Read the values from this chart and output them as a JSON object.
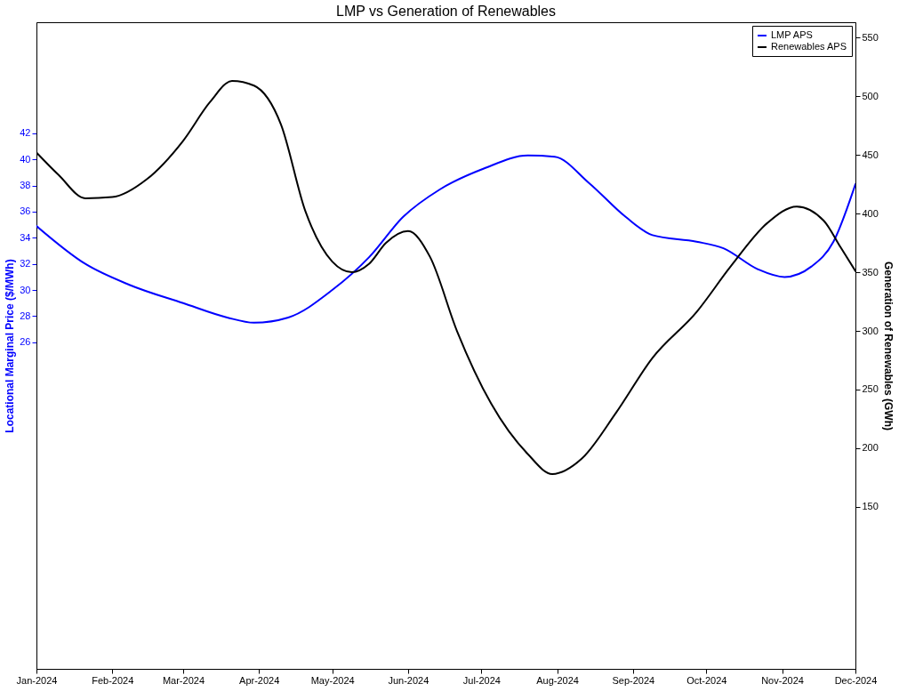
{
  "chart_data": {
    "type": "line",
    "title": "LMP vs Generation of Renewables",
    "ylabel": "Locational Marginal Price ($/MWh)",
    "y2label": "Generation of Renewables (GWh)",
    "legend": "top right",
    "grid": false,
    "line_style": "solid",
    "xlim": [
      "2024-01-01",
      "2024-12-01"
    ],
    "xticks": [
      {
        "value": "2024-01-01",
        "label": "Jan-2024"
      },
      {
        "value": "2024-02-01",
        "label": "Feb-2024"
      },
      {
        "value": "2024-03-01",
        "label": "Mar-2024"
      },
      {
        "value": "2024-04-01",
        "label": "Apr-2024"
      },
      {
        "value": "2024-05-01",
        "label": "May-2024"
      },
      {
        "value": "2024-06-01",
        "label": "Jun-2024"
      },
      {
        "value": "2024-07-01",
        "label": "Jul-2024"
      },
      {
        "value": "2024-08-01",
        "label": "Aug-2024"
      },
      {
        "value": "2024-09-01",
        "label": "Sep-2024"
      },
      {
        "value": "2024-10-01",
        "label": "Oct-2024"
      },
      {
        "value": "2024-11-01",
        "label": "Nov-2024"
      },
      {
        "value": "2024-12-01",
        "label": "Dec-2024"
      }
    ],
    "ylim": [
      1,
      50.5
    ],
    "yticks": [
      26,
      28,
      30,
      32,
      34,
      36,
      38,
      40,
      42
    ],
    "y2lim": [
      12,
      563
    ],
    "y2ticks": [
      150,
      200,
      250,
      300,
      350,
      400,
      450,
      500,
      550
    ],
    "series": [
      {
        "name": "LMP APS",
        "color": "#0000ff",
        "x": [
          "2024-01-01",
          "2024-01-21",
          "2024-02-08",
          "2024-03-01",
          "2024-03-19",
          "2024-03-30",
          "2024-04-13",
          "2024-05-01",
          "2024-05-16",
          "2024-05-30",
          "2024-06-14",
          "2024-07-02",
          "2024-07-20",
          "2024-07-31",
          "2024-08-14",
          "2024-08-29",
          "2024-09-09",
          "2024-09-27",
          "2024-10-08",
          "2024-10-22",
          "2024-11-02",
          "2024-11-13",
          "2024-11-22",
          "2024-12-01"
        ],
        "values": [
          34.9,
          32.0,
          30.4,
          29.0,
          27.9,
          27.5,
          27.9,
          30.0,
          32.5,
          35.6,
          37.7,
          39.3,
          40.3,
          40.2,
          38.2,
          35.6,
          34.2,
          33.7,
          33.2,
          31.6,
          31.0,
          31.8,
          33.7,
          38.1
        ]
      },
      {
        "name": "Renewables APS",
        "color": "#000000",
        "axis": "y2",
        "x": [
          "2024-01-01",
          "2024-01-10",
          "2024-01-21",
          "2024-02-01",
          "2024-02-15",
          "2024-03-01",
          "2024-03-12",
          "2024-03-21",
          "2024-03-30",
          "2024-04-10",
          "2024-04-20",
          "2024-05-01",
          "2024-05-09",
          "2024-05-16",
          "2024-05-23",
          "2024-06-01",
          "2024-06-10",
          "2024-06-21",
          "2024-07-05",
          "2024-07-20",
          "2024-07-30",
          "2024-08-11",
          "2024-08-25",
          "2024-09-09",
          "2024-09-27",
          "2024-10-11",
          "2024-10-26",
          "2024-11-07",
          "2024-11-18",
          "2024-11-25",
          "2024-12-01"
        ],
        "values": [
          452,
          433,
          413,
          414,
          429,
          462,
          495,
          513,
          509,
          476,
          402,
          359,
          350,
          357,
          375,
          385,
          363,
          300,
          238,
          195,
          178,
          191,
          230,
          277,
          316,
          355,
          392,
          406,
          394,
          371,
          351
        ]
      }
    ]
  }
}
